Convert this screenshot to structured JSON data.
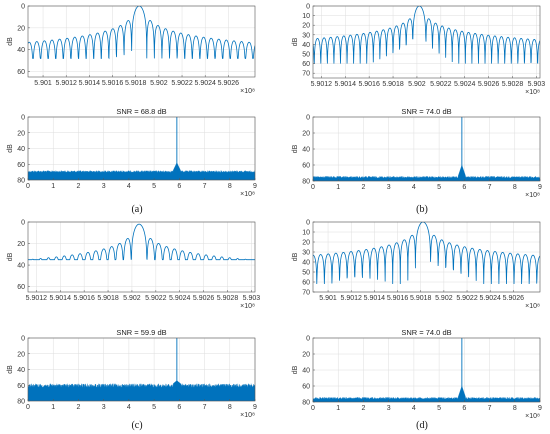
{
  "figure": {
    "captions": [
      "(a)",
      "(b)",
      "(c)",
      "(d)"
    ]
  },
  "style": {
    "line_color": "#0072BD",
    "grid_color": "#dedede",
    "axis_color": "#555555"
  },
  "chart_data": [
    {
      "id": "a-zoom",
      "type": "line",
      "title": "",
      "ylabel": "dB",
      "xlabel": "",
      "x_exponent": "×10⁸",
      "xlim": [
        5.90087,
        5.90283
      ],
      "ylim": [
        0,
        65
      ],
      "y_inverted": true,
      "grid": true,
      "xticks": [
        5.901,
        5.9012,
        5.9014,
        5.9016,
        5.9018,
        5.902,
        5.9022,
        5.9024,
        5.9026
      ],
      "xticklabels": [
        "5.901",
        "5.9012",
        "5.9014",
        "5.9016",
        "5.9018",
        "5.902",
        "5.9022",
        "5.9024",
        "5.9026"
      ],
      "yticks": [
        0,
        20,
        40,
        60
      ],
      "yticklabels": [
        "0",
        "20",
        "40",
        "60"
      ],
      "series": [
        {
          "kind": "sinc",
          "center": 5.90183,
          "lobe_spacing": 6.55e-05,
          "sidelobe_peak_db": 13,
          "decay_db": 13,
          "notch_db": 48,
          "mainlobe_top_db": 0
        }
      ]
    },
    {
      "id": "a-full",
      "type": "line",
      "title": "SNR = 68.8 dB",
      "ylabel": "dB",
      "xlabel": "",
      "x_exponent": "×10⁸",
      "xlim": [
        0,
        9
      ],
      "ylim": [
        0,
        80
      ],
      "y_inverted": true,
      "grid": true,
      "xticks": [
        0,
        1,
        2,
        3,
        4,
        5,
        6,
        7,
        8,
        9
      ],
      "xticklabels": [
        "0",
        "1",
        "2",
        "3",
        "4",
        "5",
        "6",
        "7",
        "8",
        "9"
      ],
      "yticks": [
        0,
        20,
        40,
        60,
        80
      ],
      "yticklabels": [
        "0",
        "20",
        "40",
        "60",
        "80"
      ],
      "series": [
        {
          "kind": "spectrum",
          "peak_x": 5.9018,
          "noise_floor_db": 72,
          "noise_top_db": 68,
          "skirt_db": 58
        }
      ]
    },
    {
      "id": "b-zoom",
      "type": "line",
      "title": "",
      "ylabel": "dB",
      "xlabel": "",
      "x_exponent": "×10⁸",
      "xlim": [
        5.90113,
        5.90303
      ],
      "ylim": [
        0,
        75
      ],
      "y_inverted": true,
      "grid": true,
      "xticks": [
        5.9012,
        5.9014,
        5.9016,
        5.9018,
        5.902,
        5.9022,
        5.9024,
        5.9026,
        5.9028,
        5.903
      ],
      "xticklabels": [
        "5.9012",
        "5.9014",
        "5.9016",
        "5.9018",
        "5.902",
        "5.9022",
        "5.9024",
        "5.9026",
        "5.9028",
        "5.903"
      ],
      "yticks": [
        0,
        10,
        20,
        30,
        40,
        50,
        60,
        70
      ],
      "yticklabels": [
        "0",
        "10",
        "20",
        "30",
        "40",
        "50",
        "60",
        "70"
      ],
      "series": [
        {
          "kind": "sinc",
          "center": 5.90202,
          "lobe_spacing": 5.5e-05,
          "sidelobe_peak_db": 12,
          "decay_db": 18,
          "notch_db": 60,
          "mainlobe_top_db": 0
        }
      ]
    },
    {
      "id": "b-full",
      "type": "line",
      "title": "SNR = 74.0 dB",
      "ylabel": "dB",
      "xlabel": "",
      "x_exponent": "×10⁸",
      "xlim": [
        0,
        9
      ],
      "ylim": [
        0,
        80
      ],
      "y_inverted": true,
      "grid": true,
      "xticks": [
        0,
        1,
        2,
        3,
        4,
        5,
        6,
        7,
        8,
        9
      ],
      "xticklabels": [
        "0",
        "1",
        "2",
        "3",
        "4",
        "5",
        "6",
        "7",
        "8",
        "9"
      ],
      "yticks": [
        0,
        20,
        40,
        60,
        80
      ],
      "yticklabels": [
        "0",
        "20",
        "40",
        "60",
        "80"
      ],
      "series": [
        {
          "kind": "spectrum",
          "peak_x": 5.902,
          "noise_floor_db": 78,
          "noise_top_db": 74,
          "skirt_db": 60
        }
      ]
    },
    {
      "id": "c-zoom",
      "type": "line",
      "title": "",
      "ylabel": "dB",
      "xlabel": "",
      "x_exponent": "×10⁸",
      "xlim": [
        5.90113,
        5.90303
      ],
      "ylim": [
        0,
        65
      ],
      "y_inverted": true,
      "grid": true,
      "xticks": [
        5.9012,
        5.9014,
        5.9016,
        5.9018,
        5.902,
        5.9022,
        5.9024,
        5.9026,
        5.9028,
        5.903
      ],
      "xticklabels": [
        "5.9012",
        "5.9014",
        "5.9016",
        "5.9018",
        "5.902",
        "5.9022",
        "5.9024",
        "5.9026",
        "5.9028",
        "5.903"
      ],
      "yticks": [
        0,
        20,
        40,
        60
      ],
      "yticklabels": [
        "0",
        "20",
        "40",
        "60"
      ],
      "series": [
        {
          "kind": "sinc",
          "center": 5.90206,
          "lobe_spacing": 6.6e-05,
          "sidelobe_peak_db": 9,
          "decay_db": 16,
          "notch_db": 35,
          "mainlobe_top_db": 2
        }
      ]
    },
    {
      "id": "c-full",
      "type": "line",
      "title": "SNR = 59.9 dB",
      "ylabel": "dB",
      "xlabel": "",
      "x_exponent": "×10⁸",
      "xlim": [
        0,
        9
      ],
      "ylim": [
        0,
        80
      ],
      "y_inverted": true,
      "grid": true,
      "xticks": [
        0,
        1,
        2,
        3,
        4,
        5,
        6,
        7,
        8,
        9
      ],
      "xticklabels": [
        "0",
        "1",
        "2",
        "3",
        "4",
        "5",
        "6",
        "7",
        "8",
        "9"
      ],
      "yticks": [
        0,
        20,
        40,
        60,
        80
      ],
      "yticklabels": [
        "0",
        "20",
        "40",
        "60",
        "80"
      ],
      "series": [
        {
          "kind": "spectrum",
          "peak_x": 5.902,
          "noise_floor_db": 66,
          "noise_top_db": 58,
          "skirt_db": 54
        }
      ]
    },
    {
      "id": "d-zoom",
      "type": "line",
      "title": "",
      "ylabel": "dB",
      "xlabel": "",
      "x_exponent": "×10⁸",
      "xlim": [
        5.90087,
        5.90283
      ],
      "ylim": [
        0,
        70
      ],
      "y_inverted": true,
      "grid": true,
      "xticks": [
        5.901,
        5.9012,
        5.9014,
        5.9016,
        5.9018,
        5.902,
        5.9022,
        5.9024,
        5.9026
      ],
      "xticklabels": [
        "5.901",
        "5.9012",
        "5.9014",
        "5.9016",
        "5.9018",
        "5.902",
        "5.9022",
        "5.9024",
        "5.9026"
      ],
      "yticks": [
        0,
        10,
        20,
        30,
        40,
        50,
        60,
        70
      ],
      "yticklabels": [
        "0",
        "10",
        "20",
        "30",
        "40",
        "50",
        "60",
        "70"
      ],
      "series": [
        {
          "kind": "sinc",
          "center": 5.90182,
          "lobe_spacing": 6.55e-05,
          "sidelobe_peak_db": 13,
          "decay_db": 17,
          "notch_db": 62,
          "mainlobe_top_db": 0
        }
      ]
    },
    {
      "id": "d-full",
      "type": "line",
      "title": "SNR = 74.0 dB",
      "ylabel": "dB",
      "xlabel": "",
      "x_exponent": "×10⁸",
      "xlim": [
        0,
        9
      ],
      "ylim": [
        0,
        80
      ],
      "y_inverted": true,
      "grid": true,
      "xticks": [
        0,
        1,
        2,
        3,
        4,
        5,
        6,
        7,
        8,
        9
      ],
      "xticklabels": [
        "0",
        "1",
        "2",
        "3",
        "4",
        "5",
        "6",
        "7",
        "8",
        "9"
      ],
      "yticks": [
        0,
        20,
        40,
        60,
        80
      ],
      "yticklabels": [
        "0",
        "20",
        "40",
        "60",
        "80"
      ],
      "series": [
        {
          "kind": "spectrum",
          "peak_x": 5.9018,
          "noise_floor_db": 78,
          "noise_top_db": 74,
          "skirt_db": 60
        }
      ]
    }
  ]
}
